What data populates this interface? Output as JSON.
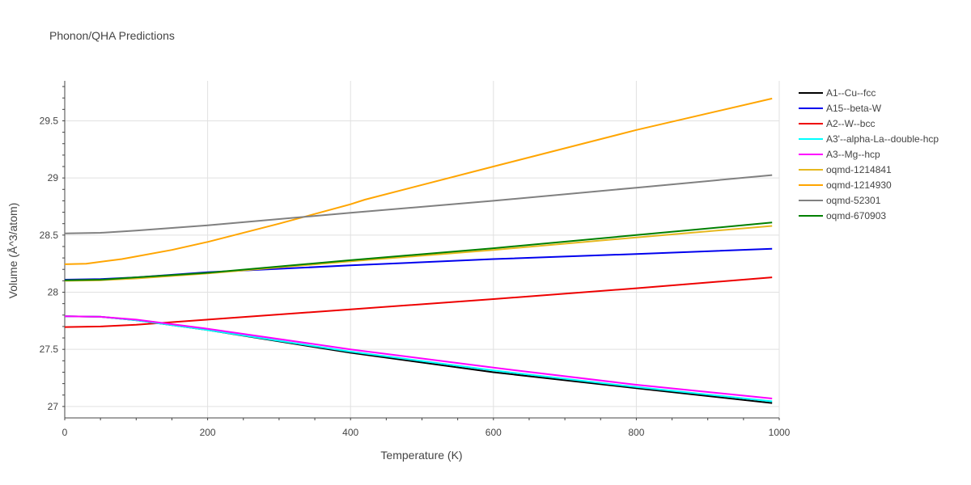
{
  "chart_data": {
    "type": "line",
    "title": "Phonon/QHA Predictions",
    "xlabel": "Temperature (K)",
    "ylabel": "Volume (Å^3/atom)",
    "xlim": [
      0,
      1000
    ],
    "ylim": [
      26.9,
      29.85
    ],
    "x_ticks": [
      0,
      200,
      400,
      600,
      800,
      1000
    ],
    "y_ticks": [
      27,
      27.5,
      28,
      28.5,
      29,
      29.5
    ],
    "x_tick_labels": [
      "0",
      "200",
      "400",
      "600",
      "800",
      "1000"
    ],
    "y_tick_labels": [
      "27",
      "27.5",
      "28",
      "28.5",
      "29",
      "29.5"
    ],
    "grid": true,
    "legend_position": "right",
    "series": [
      {
        "name": "A1--Cu--fcc",
        "color": "#000000",
        "x": [
          0,
          50,
          100,
          200,
          400,
          600,
          800,
          990
        ],
        "y": [
          27.79,
          27.785,
          27.755,
          27.67,
          27.47,
          27.3,
          27.16,
          27.03
        ]
      },
      {
        "name": "A15--beta-W",
        "color": "#0000ee",
        "x": [
          0,
          50,
          100,
          200,
          400,
          600,
          800,
          990
        ],
        "y": [
          28.11,
          28.115,
          28.13,
          28.175,
          28.235,
          28.29,
          28.335,
          28.38
        ]
      },
      {
        "name": "A2--W--bcc",
        "color": "#ee0000",
        "x": [
          0,
          50,
          100,
          200,
          400,
          600,
          800,
          990
        ],
        "y": [
          27.695,
          27.7,
          27.715,
          27.76,
          27.85,
          27.94,
          28.035,
          28.13
        ]
      },
      {
        "name": "A3'--alpha-La--double-hcp",
        "color": "#00ffff",
        "x": [
          0,
          50,
          100,
          200,
          400,
          600,
          800,
          990
        ],
        "y": [
          27.79,
          27.785,
          27.755,
          27.67,
          27.48,
          27.315,
          27.17,
          27.045
        ]
      },
      {
        "name": "A3--Mg--hcp",
        "color": "#ff00ff",
        "x": [
          0,
          50,
          100,
          200,
          400,
          600,
          800,
          990
        ],
        "y": [
          27.79,
          27.785,
          27.76,
          27.68,
          27.5,
          27.34,
          27.19,
          27.07
        ]
      },
      {
        "name": "oqmd-1214841",
        "color": "#e6b81e",
        "x": [
          0,
          50,
          100,
          200,
          400,
          600,
          800,
          990
        ],
        "y": [
          28.1,
          28.105,
          28.12,
          28.165,
          28.27,
          28.37,
          28.48,
          28.58
        ]
      },
      {
        "name": "oqmd-1214930",
        "color": "#ffa500",
        "x": [
          0,
          30,
          80,
          150,
          200,
          300,
          400,
          420,
          600,
          800,
          990
        ],
        "y": [
          28.245,
          28.25,
          28.29,
          28.37,
          28.44,
          28.6,
          28.77,
          28.81,
          29.1,
          29.42,
          29.695
        ]
      },
      {
        "name": "oqmd-52301",
        "color": "#808080",
        "x": [
          0,
          50,
          100,
          200,
          400,
          600,
          800,
          990
        ],
        "y": [
          28.515,
          28.52,
          28.54,
          28.585,
          28.695,
          28.8,
          28.915,
          29.025
        ]
      },
      {
        "name": "oqmd-670903",
        "color": "#008000",
        "x": [
          0,
          50,
          100,
          200,
          400,
          600,
          800,
          990
        ],
        "y": [
          28.105,
          28.11,
          28.13,
          28.17,
          28.28,
          28.385,
          28.5,
          28.61
        ]
      }
    ]
  }
}
